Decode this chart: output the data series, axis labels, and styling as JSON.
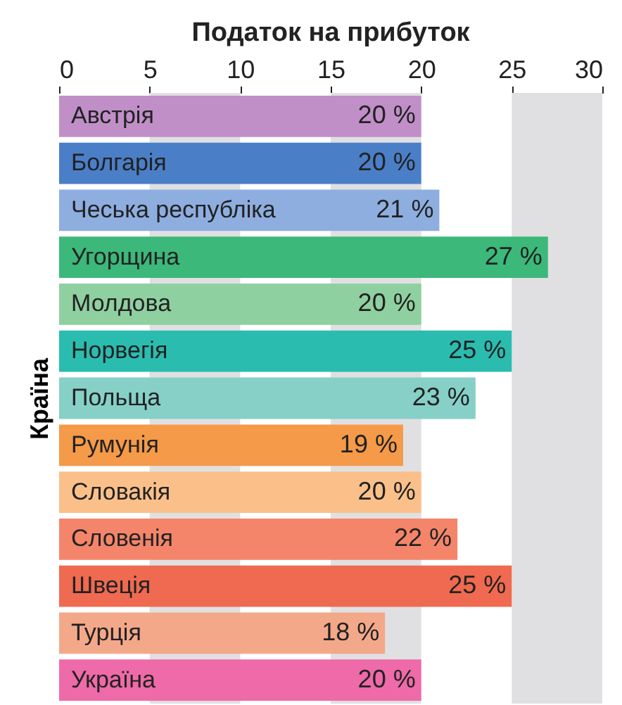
{
  "chart_data": {
    "type": "bar",
    "orientation": "horizontal",
    "title": "Податок на прибуток",
    "ylabel": "Країна",
    "categories": [
      "Австрія",
      "Болгарія",
      "Чеська республіка",
      "Угорщина",
      "Молдова",
      "Норвегія",
      "Польща",
      "Румунія",
      "Словакія",
      "Словенія",
      "Швеція",
      "Турція",
      "Україна"
    ],
    "values": [
      20,
      20,
      21,
      27,
      20,
      25,
      23,
      19,
      20,
      22,
      25,
      18,
      20
    ],
    "value_labels": [
      "20 %",
      "20 %",
      "21 %",
      "27 %",
      "20 %",
      "25 %",
      "23 %",
      "19 %",
      "20 %",
      "22 %",
      "25 %",
      "18 %",
      "20 %"
    ],
    "colors": [
      "#c08fc8",
      "#4a7fc8",
      "#8eaee0",
      "#3bb87a",
      "#8fd0a0",
      "#2bbcb0",
      "#86d0c8",
      "#f59a48",
      "#fbc08a",
      "#f4856a",
      "#ef6a50",
      "#f4a88a",
      "#ee6aa8"
    ],
    "xlim": [
      0,
      30
    ],
    "xticks": [
      0,
      5,
      10,
      15,
      20,
      25,
      30
    ],
    "bands": [
      {
        "axis": "x",
        "from": 5,
        "to": 10,
        "color": "#e0e0e2"
      },
      {
        "axis": "x",
        "from": 15,
        "to": 20,
        "color": "#e0e0e2"
      },
      {
        "axis": "x",
        "from": 25,
        "to": 30,
        "color": "#e0e0e2"
      }
    ]
  }
}
